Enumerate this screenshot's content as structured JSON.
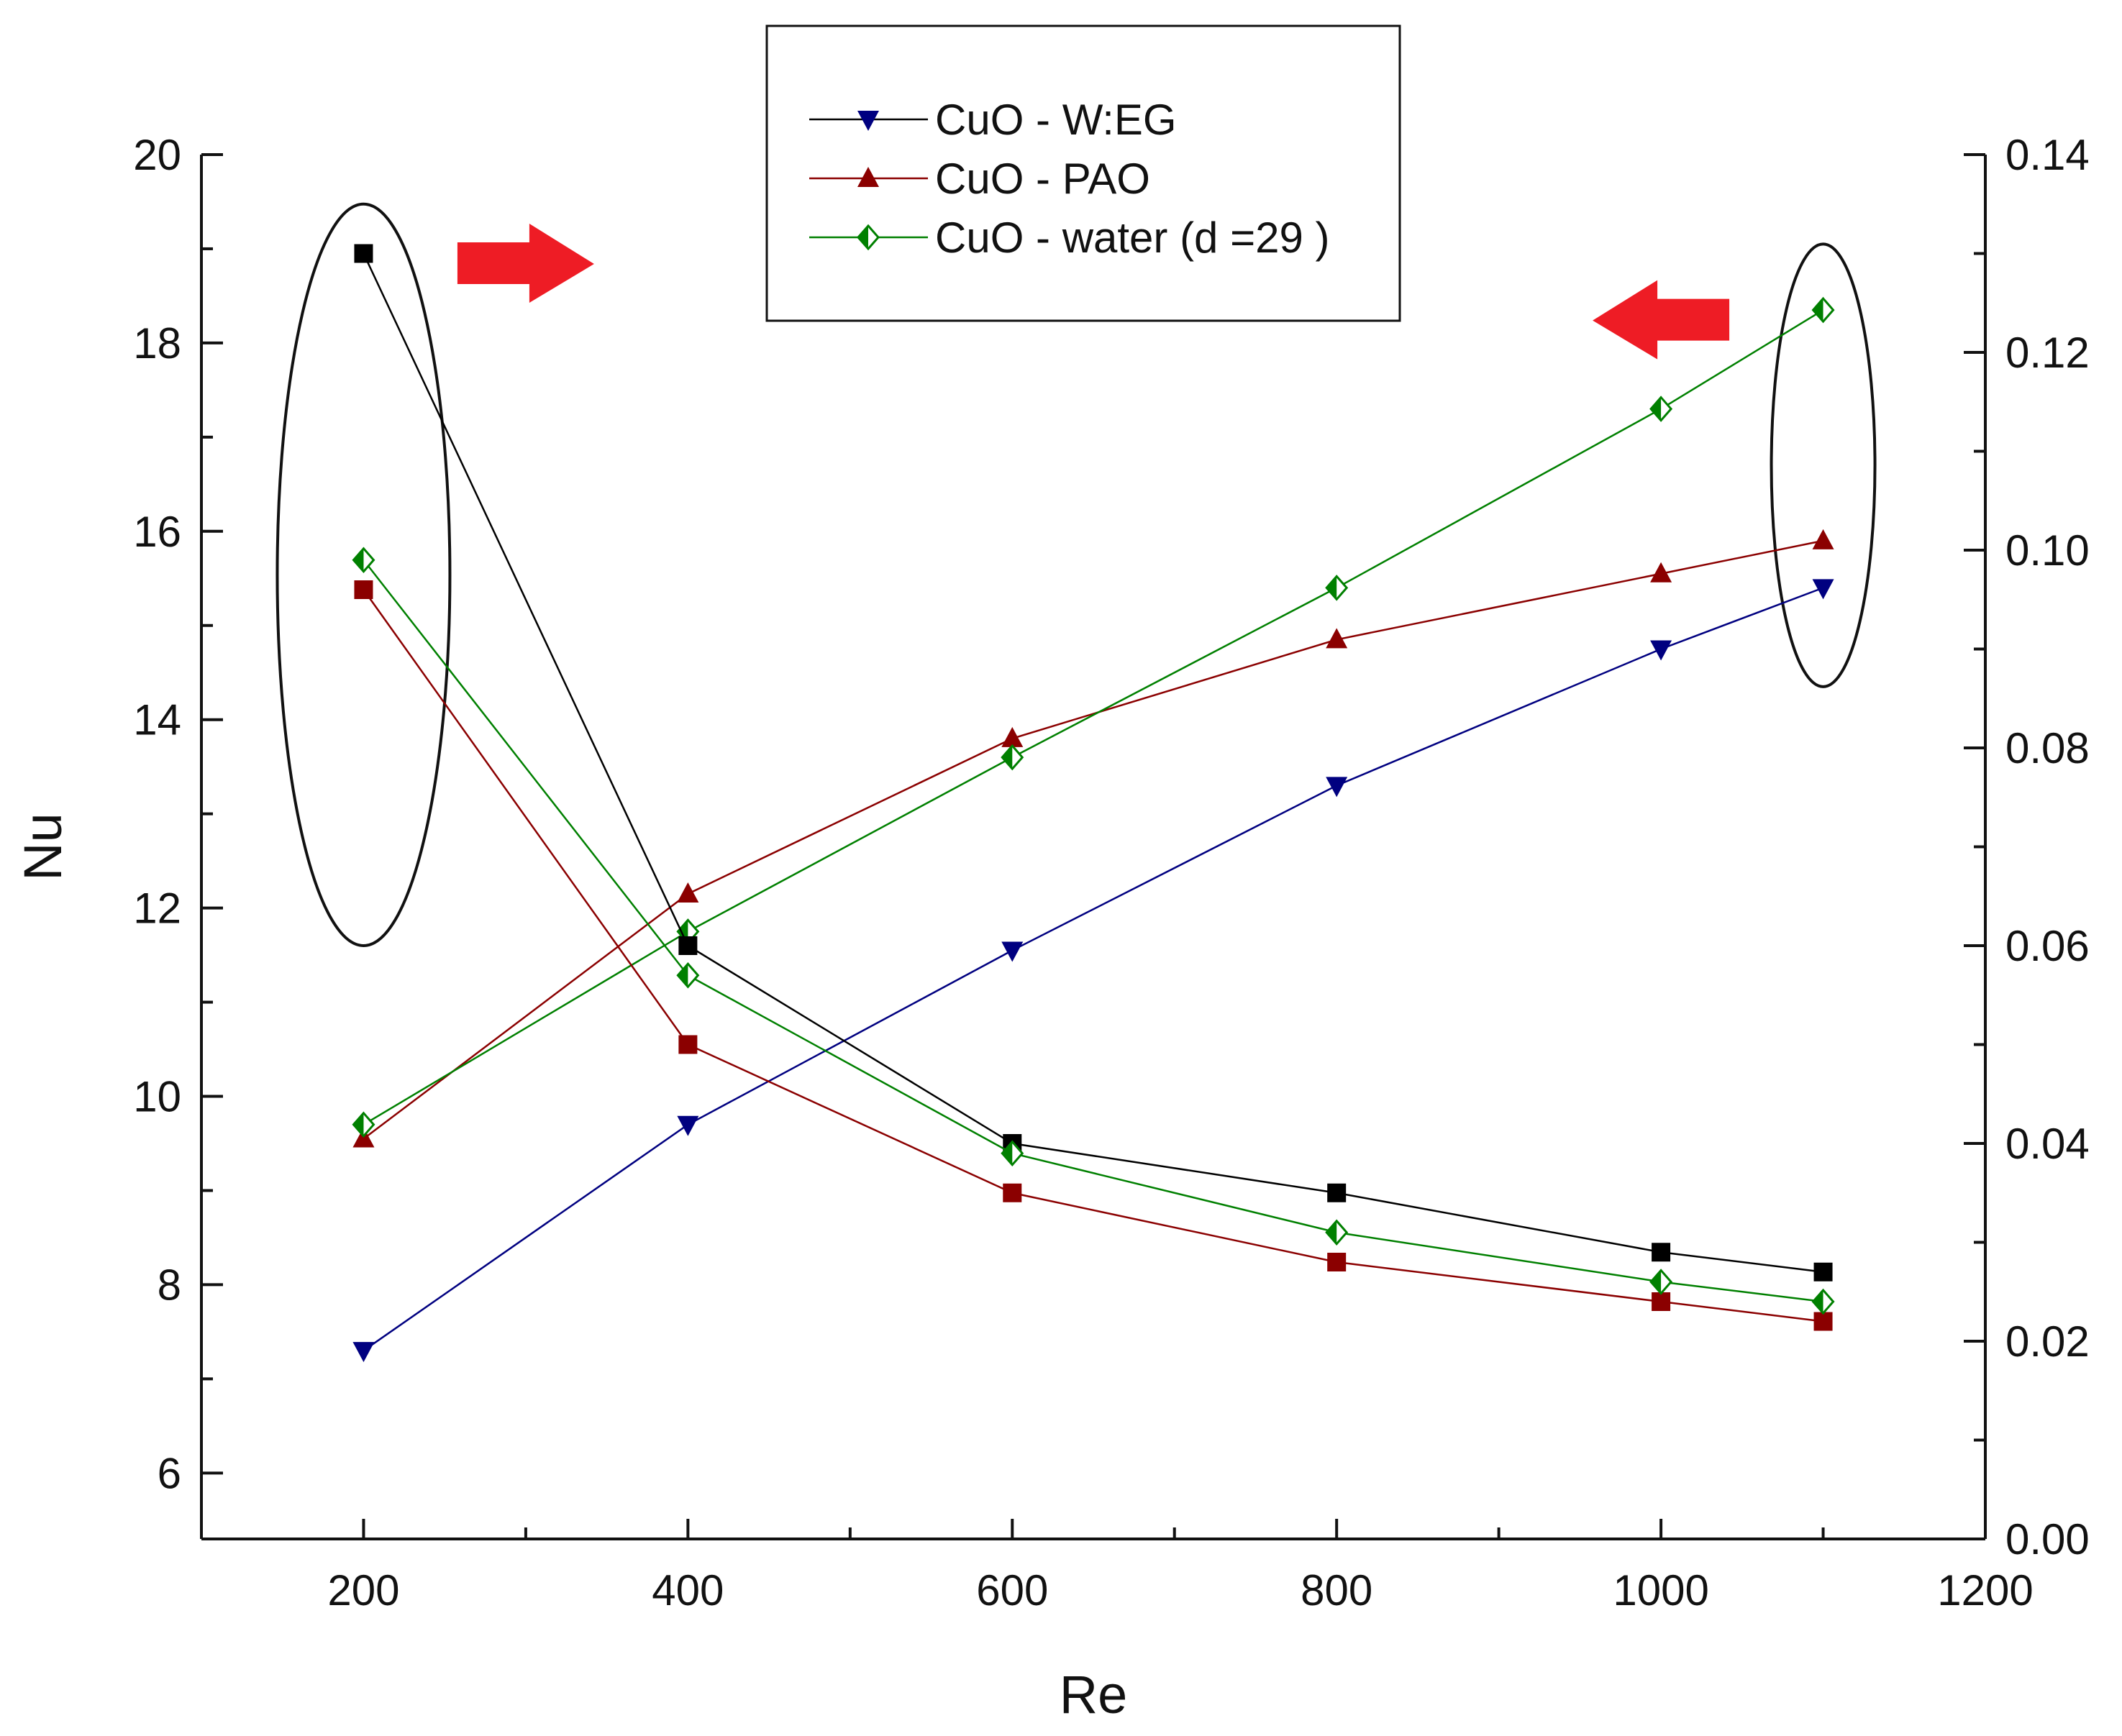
{
  "chart_data": {
    "type": "line",
    "title": "",
    "x": [
      200,
      400,
      600,
      800,
      1000,
      1100
    ],
    "xlabel": "Re",
    "ylabel": "Nu",
    "y2label": "",
    "xlim": [
      100,
      1200
    ],
    "ylim": [
      5.3,
      20
    ],
    "y2lim": [
      0,
      0.14
    ],
    "xticks": [
      "200",
      "400",
      "600",
      "800",
      "1000",
      "1200"
    ],
    "yticks": [
      "6",
      "8",
      "10",
      "12",
      "14",
      "16",
      "18",
      "20"
    ],
    "y2ticks": [
      "0.00",
      "0.02",
      "0.04",
      "0.06",
      "0.08",
      "0.10",
      "0.12",
      "0.14"
    ],
    "legend": {
      "placement": "top-center"
    },
    "series": [
      {
        "name": "CuO - W:EG",
        "axis": "left",
        "marker": "triangle-down",
        "color": "#000080",
        "values": [
          7.3,
          9.7,
          11.55,
          13.3,
          14.75,
          15.4
        ]
      },
      {
        "name": "CuO - PAO",
        "axis": "left",
        "marker": "triangle-up",
        "color": "#8b0000",
        "values": [
          9.55,
          12.15,
          13.8,
          14.85,
          15.55,
          15.9
        ]
      },
      {
        "name": "CuO - water (d =29 )",
        "axis": "left",
        "marker": "diamond",
        "color": "#008000",
        "values": [
          9.7,
          11.75,
          13.6,
          15.4,
          17.3,
          18.35
        ]
      },
      {
        "name": "",
        "axis": "right",
        "marker": "square",
        "color": "#000000",
        "values": [
          0.13,
          0.06,
          0.04,
          0.035,
          0.029,
          0.027
        ]
      },
      {
        "name": "",
        "axis": "right",
        "marker": "square",
        "color": "#8b0000",
        "values": [
          0.096,
          0.05,
          0.035,
          0.028,
          0.024,
          0.022
        ]
      },
      {
        "name": "",
        "axis": "right",
        "marker": "diamond",
        "color": "#008000",
        "values": [
          0.099,
          0.057,
          0.039,
          0.031,
          0.026,
          0.024
        ]
      }
    ],
    "annotations": [
      {
        "kind": "ellipse",
        "x": 200,
        "ylim_right": [
          0.06,
          0.135
        ]
      },
      {
        "kind": "ellipse",
        "x": 1100,
        "ylim_left": [
          14.35,
          19.05
        ]
      },
      {
        "kind": "arrow",
        "direction": "right",
        "x": 300,
        "y_left": 18.9
      },
      {
        "kind": "arrow",
        "direction": "left",
        "x": 1000,
        "y_left": 18.3
      }
    ]
  }
}
